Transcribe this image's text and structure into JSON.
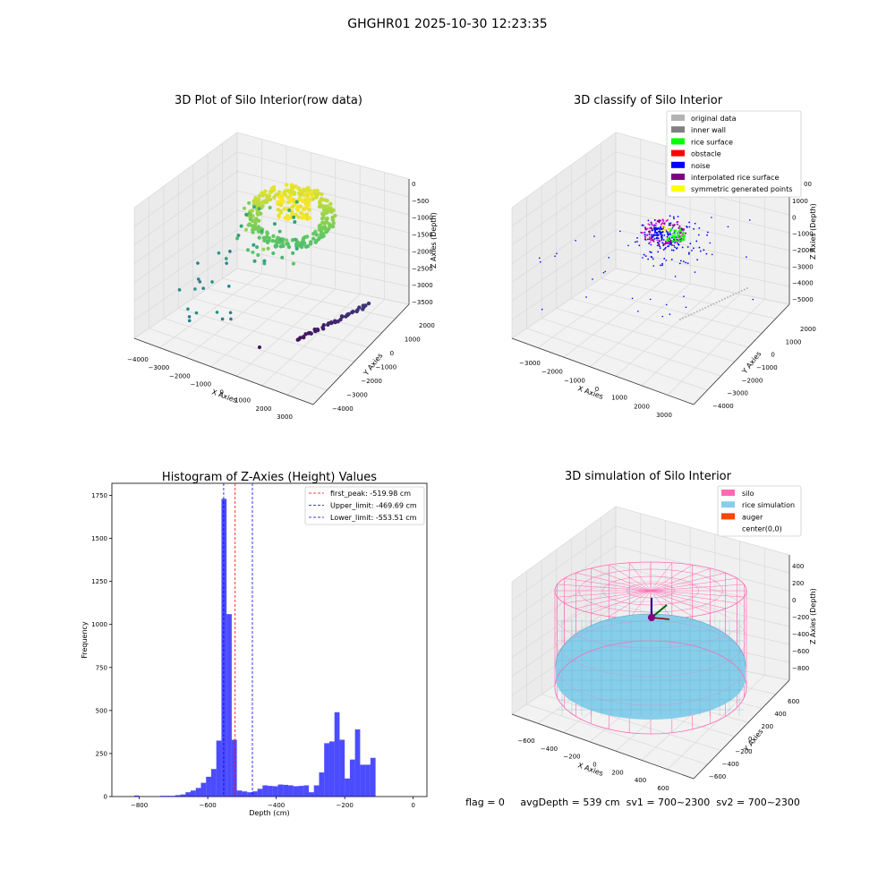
{
  "figure": {
    "suptitle": "GHGHR01 2025-10-30 12:23:35",
    "status_line": "flag = 0     avgDepth = 539 cm  sv1 = 700~2300  sv2 = 700~2300"
  },
  "chart_data": [
    {
      "id": "raw",
      "type": "scatter",
      "title": "3D Plot of Silo Interior(row data)",
      "xlabel": "X Axies",
      "ylabel": "Y Axies",
      "zlabel": "Z Axies (Depth)",
      "xticks": [
        "−4000",
        "−3000",
        "−2000",
        "−1000",
        "0",
        "1000",
        "2000",
        "3000"
      ],
      "yticks": [
        "−4000",
        "−3000",
        "−2000",
        "−1000",
        "0",
        "1000",
        "2000"
      ],
      "zticks": [
        "0",
        "−500",
        "−1000",
        "−1500",
        "−2000",
        "−2500",
        "−3000",
        "−3500"
      ],
      "colormap": "viridis"
    },
    {
      "id": "classify",
      "type": "scatter",
      "title": "3D classify of Silo Interior",
      "xlabel": "X Axies",
      "ylabel": "Y Axies",
      "zlabel": "Z Axies (Depth)",
      "xticks": [
        "−3000",
        "−2000",
        "−1000",
        "0",
        "1000",
        "2000",
        "3000"
      ],
      "yticks": [
        "−4000",
        "−3000",
        "−2000",
        "−1000",
        "0",
        "1000",
        "2000"
      ],
      "zticks": [
        "1000",
        "0",
        "−1000",
        "−2000",
        "−3000",
        "−4000",
        "−5000"
      ],
      "z_partial_tick": "00",
      "legend": [
        {
          "label": "original data",
          "color": "#b3b3b3"
        },
        {
          "label": "inner wall",
          "color": "#808080"
        },
        {
          "label": "rice surface",
          "color": "#00ff00"
        },
        {
          "label": "obstacle",
          "color": "#ff0000"
        },
        {
          "label": "noise",
          "color": "#0000ff"
        },
        {
          "label": "interpolated rice surface",
          "color": "#800080"
        },
        {
          "label": "symmetric generated points",
          "color": "#ffff00"
        }
      ],
      "legend_loc": "upper right"
    },
    {
      "id": "hist",
      "type": "bar",
      "title": "Histogram of Z-Axies (Height) Values",
      "xlabel": "Depth (cm)",
      "ylabel": "Frequency",
      "xlim": [
        -880,
        40
      ],
      "ylim": [
        0,
        1820
      ],
      "xticks": [
        -800,
        -600,
        -400,
        -200,
        0
      ],
      "xtick_labels": [
        "−800",
        "−600",
        "−400",
        "−200",
        "0"
      ],
      "yticks": [
        0,
        250,
        500,
        750,
        1000,
        1250,
        1500,
        1750
      ],
      "bar_color": "#0000ff",
      "bins": [
        {
          "x0": -815,
          "x1": -800,
          "y": 6
        },
        {
          "x0": -740,
          "x1": -695,
          "y": 4
        },
        {
          "x0": -695,
          "x1": -680,
          "y": 8
        },
        {
          "x0": -680,
          "x1": -665,
          "y": 12
        },
        {
          "x0": -665,
          "x1": -650,
          "y": 25
        },
        {
          "x0": -650,
          "x1": -635,
          "y": 35
        },
        {
          "x0": -635,
          "x1": -620,
          "y": 50
        },
        {
          "x0": -620,
          "x1": -605,
          "y": 80
        },
        {
          "x0": -605,
          "x1": -590,
          "y": 115
        },
        {
          "x0": -590,
          "x1": -575,
          "y": 160
        },
        {
          "x0": -575,
          "x1": -560,
          "y": 325
        },
        {
          "x0": -560,
          "x1": -545,
          "y": 1730
        },
        {
          "x0": -545,
          "x1": -530,
          "y": 1060
        },
        {
          "x0": -530,
          "x1": -515,
          "y": 330
        },
        {
          "x0": -515,
          "x1": -500,
          "y": 35
        },
        {
          "x0": -500,
          "x1": -485,
          "y": 30
        },
        {
          "x0": -485,
          "x1": -470,
          "y": 25
        },
        {
          "x0": -470,
          "x1": -455,
          "y": 30
        },
        {
          "x0": -455,
          "x1": -440,
          "y": 45
        },
        {
          "x0": -440,
          "x1": -425,
          "y": 65
        },
        {
          "x0": -425,
          "x1": -410,
          "y": 62
        },
        {
          "x0": -410,
          "x1": -395,
          "y": 60
        },
        {
          "x0": -395,
          "x1": -380,
          "y": 70
        },
        {
          "x0": -380,
          "x1": -365,
          "y": 68
        },
        {
          "x0": -365,
          "x1": -350,
          "y": 65
        },
        {
          "x0": -350,
          "x1": -335,
          "y": 60
        },
        {
          "x0": -335,
          "x1": -320,
          "y": 62
        },
        {
          "x0": -320,
          "x1": -305,
          "y": 65
        },
        {
          "x0": -305,
          "x1": -290,
          "y": 25
        },
        {
          "x0": -290,
          "x1": -275,
          "y": 65
        },
        {
          "x0": -275,
          "x1": -260,
          "y": 140
        },
        {
          "x0": -260,
          "x1": -245,
          "y": 310
        },
        {
          "x0": -245,
          "x1": -230,
          "y": 320
        },
        {
          "x0": -230,
          "x1": -215,
          "y": 490
        },
        {
          "x0": -215,
          "x1": -200,
          "y": 330
        },
        {
          "x0": -200,
          "x1": -185,
          "y": 105
        },
        {
          "x0": -185,
          "x1": -170,
          "y": 215
        },
        {
          "x0": -170,
          "x1": -155,
          "y": 390
        },
        {
          "x0": -155,
          "x1": -140,
          "y": 185
        },
        {
          "x0": -140,
          "x1": -125,
          "y": 185
        },
        {
          "x0": -125,
          "x1": -110,
          "y": 225
        }
      ],
      "vlines": [
        {
          "label": "first_peak: -519.98 cm",
          "x": -519.98,
          "color": "#ff0000"
        },
        {
          "label": "Upper_limit: -469.69 cm",
          "x": -469.69,
          "color": "#0000ff"
        },
        {
          "label": "Lower_limit: -553.51 cm",
          "x": -553.51,
          "color": "#0000ff"
        }
      ],
      "legend_loc": "upper right"
    },
    {
      "id": "sim",
      "type": "scatter",
      "title": "3D simulation of Silo Interior",
      "xlabel": "X Axies",
      "ylabel": "Y Axies",
      "zlabel": "Z Axies (Depth)",
      "xticks": [
        "−600",
        "−400",
        "−200",
        "0",
        "200",
        "400",
        "600"
      ],
      "yticks": [
        "−600",
        "−400",
        "−200",
        "0",
        "200",
        "400",
        "600"
      ],
      "zticks": [
        "400",
        "200",
        "0",
        "−200",
        "−400",
        "−600",
        "−800"
      ],
      "legend": [
        {
          "label": "silo",
          "color": "#ff69b4"
        },
        {
          "label": "rice simulation",
          "color": "#87ceeb"
        },
        {
          "label": "auger",
          "color": "#ff4500"
        },
        {
          "label": "center(0,0)",
          "color": ""
        }
      ],
      "legend_loc": "upper right"
    }
  ]
}
